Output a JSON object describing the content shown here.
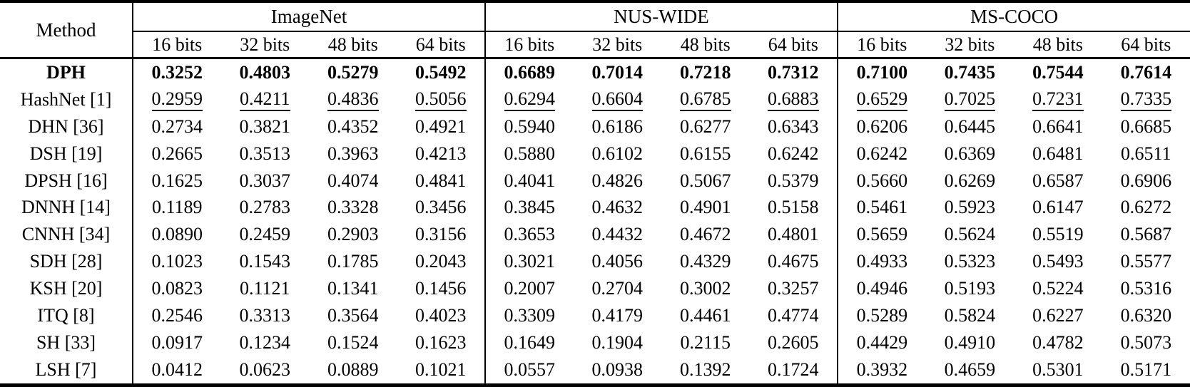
{
  "table": {
    "method_header": "Method",
    "datasets": [
      "ImageNet",
      "NUS-WIDE",
      "MS-COCO"
    ],
    "bit_labels": [
      "16 bits",
      "32 bits",
      "48 bits",
      "64 bits"
    ],
    "rows": [
      {
        "method": "DPH",
        "style": "bold",
        "imagenet": [
          "0.3252",
          "0.4803",
          "0.5279",
          "0.5492"
        ],
        "nuswide": [
          "0.6689",
          "0.7014",
          "0.7218",
          "0.7312"
        ],
        "mscoco": [
          "0.7100",
          "0.7435",
          "0.7544",
          "0.7614"
        ]
      },
      {
        "method": "HashNet [1]",
        "style": "underline",
        "imagenet": [
          "0.2959",
          "0.4211",
          "0.4836",
          "0.5056"
        ],
        "nuswide": [
          "0.6294",
          "0.6604",
          "0.6785",
          "0.6883"
        ],
        "mscoco": [
          "0.6529",
          "0.7025",
          "0.7231",
          "0.7335"
        ]
      },
      {
        "method": "DHN [36]",
        "style": "normal",
        "imagenet": [
          "0.2734",
          "0.3821",
          "0.4352",
          "0.4921"
        ],
        "nuswide": [
          "0.5940",
          "0.6186",
          "0.6277",
          "0.6343"
        ],
        "mscoco": [
          "0.6206",
          "0.6445",
          "0.6641",
          "0.6685"
        ]
      },
      {
        "method": "DSH [19]",
        "style": "normal",
        "imagenet": [
          "0.2665",
          "0.3513",
          "0.3963",
          "0.4213"
        ],
        "nuswide": [
          "0.5880",
          "0.6102",
          "0.6155",
          "0.6242"
        ],
        "mscoco": [
          "0.6242",
          "0.6369",
          "0.6481",
          "0.6511"
        ]
      },
      {
        "method": "DPSH [16]",
        "style": "normal",
        "imagenet": [
          "0.1625",
          "0.3037",
          "0.4074",
          "0.4841"
        ],
        "nuswide": [
          "0.4041",
          "0.4826",
          "0.5067",
          "0.5379"
        ],
        "mscoco": [
          "0.5660",
          "0.6269",
          "0.6587",
          "0.6906"
        ]
      },
      {
        "method": "DNNH [14]",
        "style": "normal",
        "imagenet": [
          "0.1189",
          "0.2783",
          "0.3328",
          "0.3456"
        ],
        "nuswide": [
          "0.3845",
          "0.4632",
          "0.4901",
          "0.5158"
        ],
        "mscoco": [
          "0.5461",
          "0.5923",
          "0.6147",
          "0.6272"
        ]
      },
      {
        "method": "CNNH [34]",
        "style": "normal",
        "imagenet": [
          "0.0890",
          "0.2459",
          "0.2903",
          "0.3156"
        ],
        "nuswide": [
          "0.3653",
          "0.4432",
          "0.4672",
          "0.4801"
        ],
        "mscoco": [
          "0.5659",
          "0.5624",
          "0.5519",
          "0.5687"
        ]
      },
      {
        "method": "SDH [28]",
        "style": "normal",
        "imagenet": [
          "0.1023",
          "0.1543",
          "0.1785",
          "0.2043"
        ],
        "nuswide": [
          "0.3021",
          "0.4056",
          "0.4329",
          "0.4675"
        ],
        "mscoco": [
          "0.4933",
          "0.5323",
          "0.5493",
          "0.5577"
        ]
      },
      {
        "method": "KSH [20]",
        "style": "normal",
        "imagenet": [
          "0.0823",
          "0.1121",
          "0.1341",
          "0.1456"
        ],
        "nuswide": [
          "0.2007",
          "0.2704",
          "0.3002",
          "0.3257"
        ],
        "mscoco": [
          "0.4946",
          "0.5193",
          "0.5224",
          "0.5316"
        ]
      },
      {
        "method": "ITQ [8]",
        "style": "normal",
        "imagenet": [
          "0.2546",
          "0.3313",
          "0.3564",
          "0.4023"
        ],
        "nuswide": [
          "0.3309",
          "0.4179",
          "0.4461",
          "0.4774"
        ],
        "mscoco": [
          "0.5289",
          "0.5824",
          "0.6227",
          "0.6320"
        ]
      },
      {
        "method": "SH [33]",
        "style": "normal",
        "imagenet": [
          "0.0917",
          "0.1234",
          "0.1524",
          "0.1623"
        ],
        "nuswide": [
          "0.1649",
          "0.1904",
          "0.2115",
          "0.2605"
        ],
        "mscoco": [
          "0.4429",
          "0.4910",
          "0.4782",
          "0.5073"
        ]
      },
      {
        "method": "LSH [7]",
        "style": "normal",
        "imagenet": [
          "0.0412",
          "0.0623",
          "0.0889",
          "0.1021"
        ],
        "nuswide": [
          "0.0557",
          "0.0938",
          "0.1392",
          "0.1724"
        ],
        "mscoco": [
          "0.3932",
          "0.4659",
          "0.5301",
          "0.5171"
        ]
      }
    ]
  }
}
